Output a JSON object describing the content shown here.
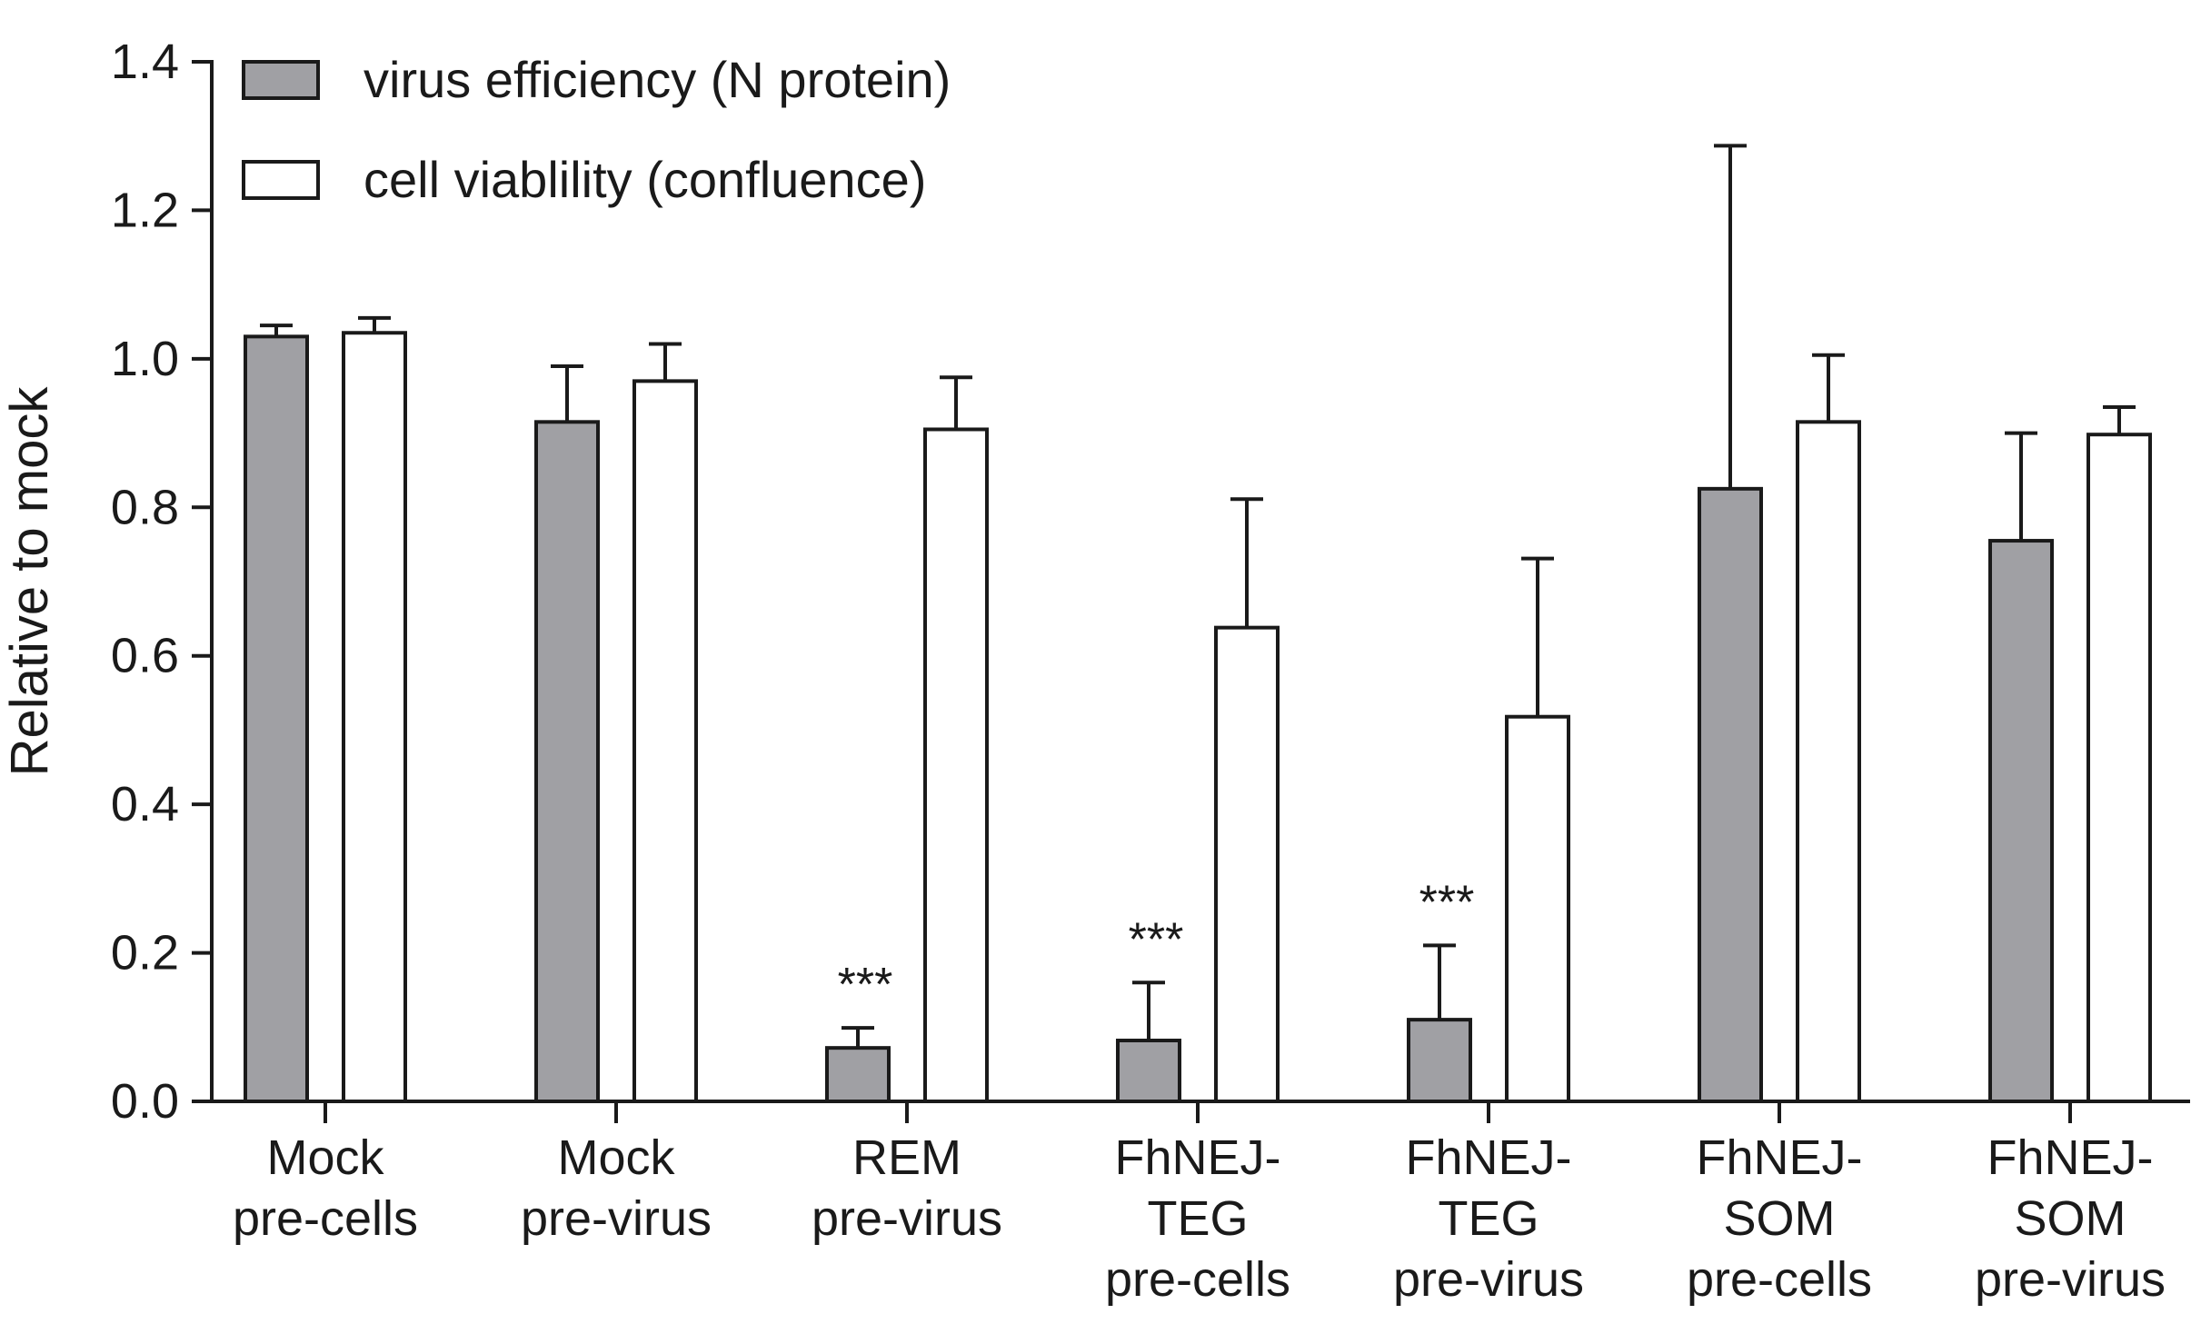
{
  "chart_data": {
    "type": "bar",
    "categories": [
      [
        "Mock",
        "pre-cells"
      ],
      [
        "Mock",
        "pre-virus"
      ],
      [
        "REM",
        "pre-virus"
      ],
      [
        "FhNEJ-",
        "TEG",
        "pre-cells"
      ],
      [
        "FhNEJ-",
        "TEG",
        "pre-virus"
      ],
      [
        "FhNEJ-",
        "SOM",
        "pre-cells"
      ],
      [
        "FhNEJ-",
        "SOM",
        "pre-virus"
      ]
    ],
    "series": [
      {
        "name": "virus efficiency (N protein)",
        "color": "#a0a0a4",
        "values": [
          1.03,
          0.915,
          0.072,
          0.082,
          0.11,
          0.825,
          0.755
        ],
        "error": [
          0.015,
          0.075,
          0.027,
          0.078,
          0.1,
          0.462,
          0.145
        ]
      },
      {
        "name": "cell viablility (confluence)",
        "color": "#ffffff",
        "values": [
          1.035,
          0.97,
          0.905,
          0.638,
          0.518,
          0.915,
          0.898
        ],
        "error": [
          0.02,
          0.05,
          0.07,
          0.173,
          0.213,
          0.09,
          0.037
        ]
      }
    ],
    "significance": [
      {
        "category_index": 2,
        "series_index": 0,
        "label": "***"
      },
      {
        "category_index": 3,
        "series_index": 0,
        "label": "***"
      },
      {
        "category_index": 4,
        "series_index": 0,
        "label": "***"
      }
    ],
    "ylabel": "Relative to mock",
    "xlabel": "",
    "ylim": [
      0,
      1.4
    ],
    "yticks": [
      "0.0",
      "0.2",
      "0.4",
      "0.6",
      "0.8",
      "1.0",
      "1.2",
      "1.4"
    ],
    "legend_position": "top-left",
    "grid": false
  }
}
